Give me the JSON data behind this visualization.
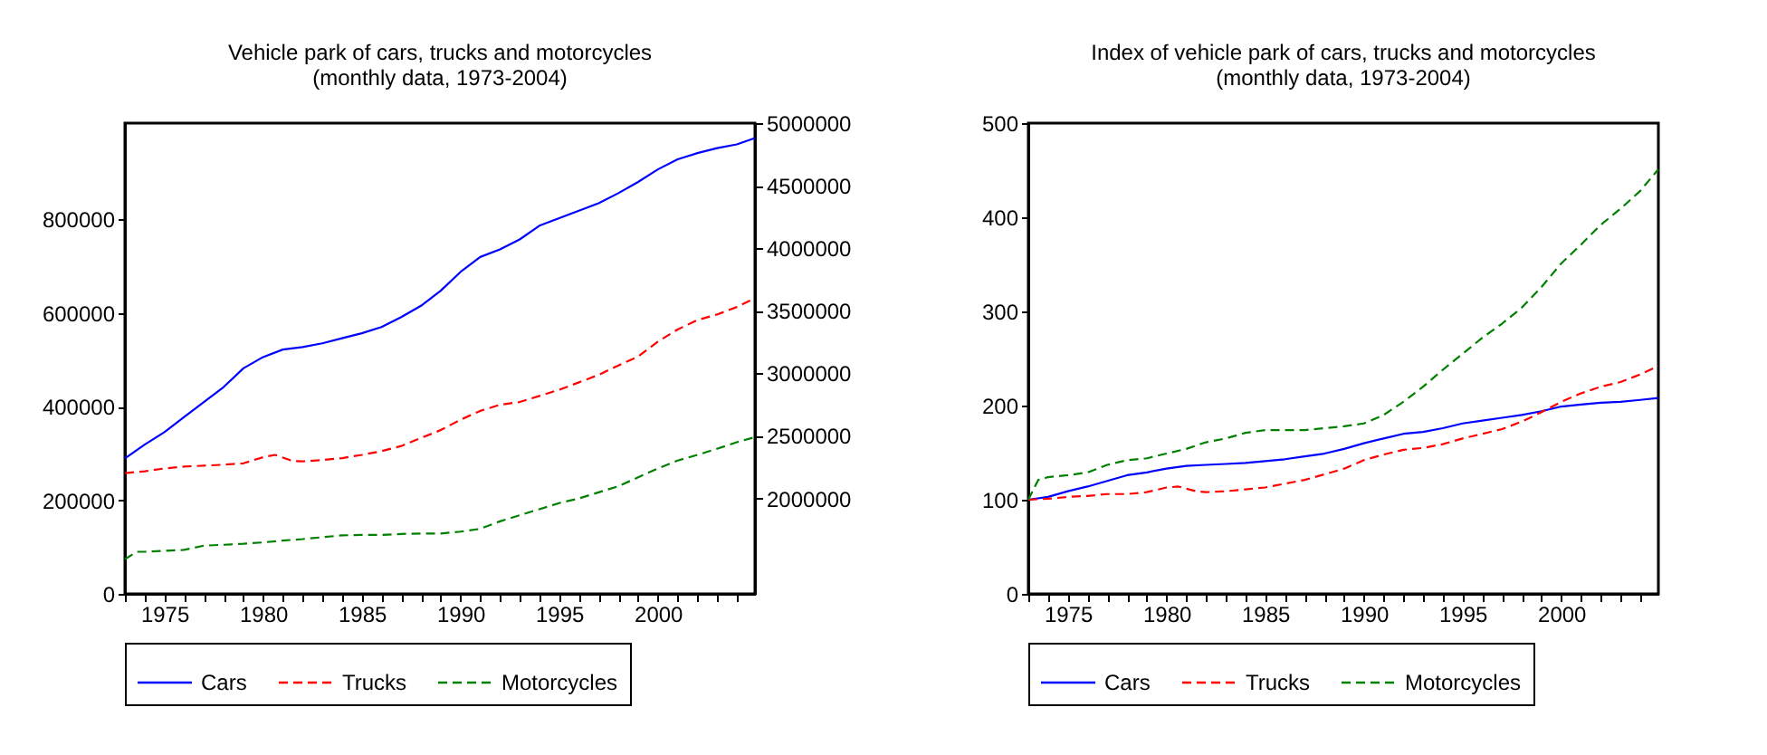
{
  "chart_data": [
    {
      "type": "line",
      "title": "Vehicle park of cars, trucks and motorcycles",
      "subtitle": "(monthly data, 1973-2004)",
      "xlim": [
        1973,
        2004.92
      ],
      "xticks": [
        {
          "value": 1973,
          "label": null
        },
        {
          "value": 1974,
          "label": null
        },
        1975,
        {
          "value": 1976,
          "label": null
        },
        {
          "value": 1977,
          "label": null
        },
        {
          "value": 1978,
          "label": null
        },
        {
          "value": 1979,
          "label": null
        },
        1980,
        {
          "value": 1981,
          "label": null
        },
        {
          "value": 1982,
          "label": null
        },
        {
          "value": 1983,
          "label": null
        },
        {
          "value": 1984,
          "label": null
        },
        1985,
        {
          "value": 1986,
          "label": null
        },
        {
          "value": 1987,
          "label": null
        },
        {
          "value": 1988,
          "label": null
        },
        {
          "value": 1989,
          "label": null
        },
        1990,
        {
          "value": 1991,
          "label": null
        },
        {
          "value": 1992,
          "label": null
        },
        {
          "value": 1993,
          "label": null
        },
        {
          "value": 1994,
          "label": null
        },
        1995,
        {
          "value": 1996,
          "label": null
        },
        {
          "value": 1997,
          "label": null
        },
        {
          "value": 1998,
          "label": null
        },
        {
          "value": 1999,
          "label": null
        },
        2000,
        {
          "value": 2001,
          "label": null
        },
        {
          "value": 2002,
          "label": null
        },
        {
          "value": 2003,
          "label": null
        },
        {
          "value": 2004,
          "label": null
        }
      ],
      "ylim": [
        0,
        1006000
      ],
      "yticks": [
        0,
        200000,
        400000,
        600000,
        800000
      ],
      "y2lim": [
        1237000,
        5000000
      ],
      "y2ticks": [
        2000000,
        2500000,
        3000000,
        3500000,
        4000000,
        4500000,
        5000000
      ],
      "legend": "bottom",
      "series": [
        {
          "name": "Cars",
          "color": "#0000ff",
          "line_style": "solid",
          "axis": "y2",
          "x": [
            1973,
            1974,
            1975,
            1976,
            1977,
            1978,
            1979,
            1980,
            1981,
            1982,
            1983,
            1984,
            1985,
            1986,
            1987,
            1988,
            1989,
            1990,
            1991,
            1992,
            1993,
            1994,
            1995,
            1996,
            1997,
            1998,
            1999,
            2000,
            2001,
            2002,
            2003,
            2004,
            2004.92
          ],
          "values": [
            2320000,
            2430000,
            2530000,
            2650000,
            2770000,
            2890000,
            3040000,
            3130000,
            3190000,
            3210000,
            3240000,
            3280000,
            3320000,
            3370000,
            3450000,
            3540000,
            3660000,
            3810000,
            3930000,
            3990000,
            4070000,
            4180000,
            4240000,
            4300000,
            4360000,
            4440000,
            4530000,
            4630000,
            4710000,
            4760000,
            4800000,
            4830000,
            4880000
          ]
        },
        {
          "name": "Trucks",
          "color": "#ff0000",
          "line_style": "dashed",
          "x": [
            1973,
            1974,
            1975,
            1976,
            1977,
            1978,
            1979,
            1980,
            1980.6,
            1981.5,
            1982,
            1983,
            1984,
            1985,
            1986,
            1987,
            1988,
            1989,
            1990,
            1991,
            1992,
            1993,
            1994,
            1995,
            1996,
            1997,
            1998,
            1999,
            2000,
            2001,
            2002,
            2003,
            2004,
            2004.92
          ],
          "values": [
            258000,
            262000,
            268000,
            272000,
            274000,
            276000,
            279000,
            292000,
            297000,
            284000,
            283000,
            286000,
            290000,
            297000,
            305000,
            316000,
            333000,
            350000,
            372000,
            391000,
            404000,
            410000,
            423000,
            436000,
            452000,
            468000,
            488000,
            507000,
            539000,
            565000,
            585000,
            597000,
            613000,
            632000
          ]
        },
        {
          "name": "Motorcycles",
          "color": "#008000",
          "line_style": "dashed",
          "x": [
            1973,
            1973.6,
            1974,
            1975,
            1976,
            1977,
            1978,
            1979,
            1980,
            1981,
            1982,
            1983,
            1984,
            1985,
            1986,
            1987,
            1988,
            1989,
            1990,
            1991,
            1992,
            1993,
            1994,
            1995,
            1996,
            1997,
            1998,
            1999,
            2000,
            2001,
            2002,
            2003,
            2004,
            2004.92
          ],
          "values": [
            74000,
            90000,
            90000,
            92000,
            94000,
            103000,
            105000,
            107000,
            110000,
            114000,
            117000,
            121000,
            125000,
            126000,
            126000,
            128000,
            129000,
            129000,
            133000,
            139000,
            155000,
            168000,
            181000,
            194000,
            204000,
            217000,
            230000,
            249000,
            268000,
            285000,
            297000,
            310000,
            324000,
            335000
          ]
        }
      ]
    },
    {
      "type": "line",
      "title": "Index of vehicle park of cars, trucks and motorcycles",
      "subtitle": "(monthly data, 1973-2004)",
      "xlim": [
        1973,
        2004.92
      ],
      "xticks": [
        {
          "value": 1973,
          "label": null
        },
        {
          "value": 1974,
          "label": null
        },
        1975,
        {
          "value": 1976,
          "label": null
        },
        {
          "value": 1977,
          "label": null
        },
        {
          "value": 1978,
          "label": null
        },
        {
          "value": 1979,
          "label": null
        },
        1980,
        {
          "value": 1981,
          "label": null
        },
        {
          "value": 1982,
          "label": null
        },
        {
          "value": 1983,
          "label": null
        },
        {
          "value": 1984,
          "label": null
        },
        1985,
        {
          "value": 1986,
          "label": null
        },
        {
          "value": 1987,
          "label": null
        },
        {
          "value": 1988,
          "label": null
        },
        {
          "value": 1989,
          "label": null
        },
        1990,
        {
          "value": 1991,
          "label": null
        },
        {
          "value": 1992,
          "label": null
        },
        {
          "value": 1993,
          "label": null
        },
        {
          "value": 1994,
          "label": null
        },
        1995,
        {
          "value": 1996,
          "label": null
        },
        {
          "value": 1997,
          "label": null
        },
        {
          "value": 1998,
          "label": null
        },
        {
          "value": 1999,
          "label": null
        },
        2000,
        {
          "value": 2001,
          "label": null
        },
        {
          "value": 2002,
          "label": null
        },
        {
          "value": 2003,
          "label": null
        },
        {
          "value": 2004,
          "label": null
        }
      ],
      "ylim": [
        0,
        500
      ],
      "yticks": [
        0,
        100,
        200,
        300,
        400,
        500
      ],
      "legend": "bottom",
      "series": [
        {
          "name": "Cars",
          "color": "#0000ff",
          "line_style": "solid",
          "x": [
            1973,
            1974,
            1975,
            1976,
            1977,
            1978,
            1979,
            1980,
            1981,
            1982,
            1983,
            1984,
            1985,
            1986,
            1987,
            1988,
            1989,
            1990,
            1991,
            1992,
            1993,
            1994,
            1995,
            1996,
            1997,
            1998,
            1999,
            2000,
            2001,
            2002,
            2003,
            2004,
            2004.92
          ],
          "values": [
            100,
            103,
            109,
            114,
            120,
            126,
            129,
            133,
            136,
            137,
            138,
            139,
            141,
            143,
            146,
            149,
            154,
            160,
            165,
            170,
            172,
            176,
            181,
            184,
            187,
            190,
            194,
            199,
            201,
            203,
            204,
            206,
            208
          ]
        },
        {
          "name": "Trucks",
          "color": "#ff0000",
          "line_style": "dashed",
          "x": [
            1973,
            1974,
            1975,
            1976,
            1977,
            1978,
            1979,
            1980,
            1980.6,
            1981.5,
            1982,
            1983,
            1984,
            1985,
            1986,
            1987,
            1988,
            1989,
            1990,
            1991,
            1992,
            1993,
            1994,
            1995,
            1996,
            1997,
            1998,
            1999,
            2000,
            2001,
            2002,
            2003,
            2004,
            2004.92
          ],
          "values": [
            100,
            101,
            103,
            104,
            106,
            106,
            108,
            113,
            114,
            109,
            108,
            109,
            111,
            113,
            117,
            121,
            127,
            133,
            142,
            148,
            153,
            155,
            159,
            165,
            170,
            175,
            183,
            193,
            204,
            213,
            220,
            225,
            233,
            242
          ]
        },
        {
          "name": "Motorcycles",
          "color": "#008000",
          "line_style": "dashed",
          "x": [
            1973,
            1973.5,
            1974,
            1975,
            1976,
            1977,
            1978,
            1979,
            1980,
            1981,
            1982,
            1983,
            1984,
            1985,
            1986,
            1987,
            1988,
            1989,
            1990,
            1991,
            1992,
            1993,
            1994,
            1995,
            1996,
            1997,
            1998,
            1999,
            2000,
            2001,
            2002,
            2003,
            2004,
            2004.92
          ],
          "values": [
            100,
            121,
            124,
            126,
            129,
            137,
            142,
            144,
            149,
            154,
            161,
            165,
            171,
            174,
            174,
            174,
            176,
            178,
            181,
            190,
            204,
            220,
            238,
            255,
            272,
            287,
            304,
            326,
            351,
            371,
            392,
            409,
            428,
            451
          ]
        }
      ]
    }
  ]
}
